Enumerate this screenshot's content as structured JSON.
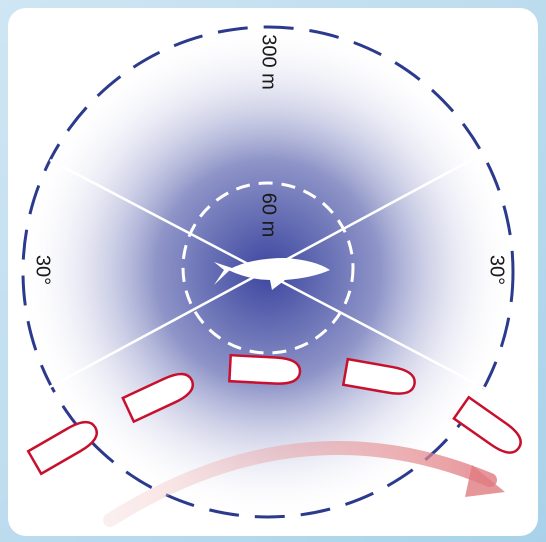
{
  "labels": {
    "outer_radius": "300 m",
    "inner_radius": "60 m",
    "left_angle": "30°",
    "right_angle": "30°"
  }
}
